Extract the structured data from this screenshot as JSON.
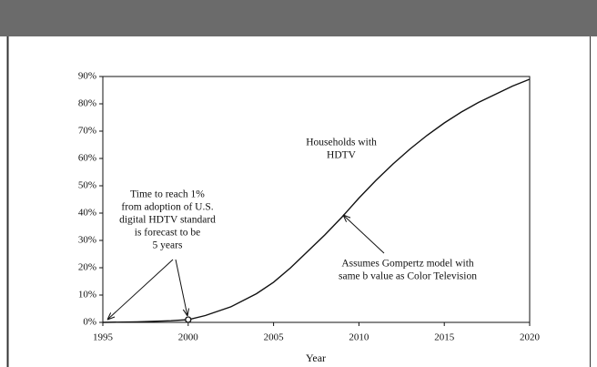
{
  "chart_data": {
    "type": "line",
    "x": [
      1995,
      1997,
      1999,
      2000,
      2001,
      2002.5,
      2004,
      2005,
      2006,
      2007,
      2008,
      2009,
      2010,
      2011,
      2012,
      2013,
      2014,
      2015,
      2016,
      2017,
      2018,
      2019,
      2020
    ],
    "series": [
      {
        "name": "Households with HDTV",
        "color": "#111111",
        "values": [
          0,
          0.2,
          0.6,
          1,
          2.5,
          5.7,
          10.5,
          14.7,
          20,
          26,
          32,
          38.5,
          45.5,
          52,
          58,
          63.5,
          68.5,
          73,
          77,
          80.5,
          83.5,
          86.5,
          89
        ]
      }
    ],
    "highlight": {
      "x": 2000,
      "value": 1
    },
    "xlim": [
      1995,
      2020
    ],
    "xticks": [
      1995,
      2000,
      2005,
      2010,
      2015,
      2020
    ],
    "ylim": [
      0,
      90
    ],
    "yticks": [
      {
        "value": 0,
        "label": "0%"
      },
      {
        "value": 10,
        "label": "10%"
      },
      {
        "value": 20,
        "label": "20%"
      },
      {
        "value": 30,
        "label": "30%"
      },
      {
        "value": 40,
        "label": "40%"
      },
      {
        "value": 50,
        "label": "50%"
      },
      {
        "value": 60,
        "label": "60%"
      },
      {
        "value": 70,
        "label": "70%"
      },
      {
        "value": 80,
        "label": "80%"
      },
      {
        "value": 90,
        "label": "90%"
      }
    ],
    "xlabel": "Year",
    "annotations": [
      {
        "lines": [
          "Households with",
          "HDTV"
        ]
      },
      {
        "lines": [
          "Time to reach 1%",
          "from adoption of U.S.",
          "digital HDTV standard",
          "is forecast to be",
          "5 years"
        ]
      },
      {
        "lines": [
          "Assumes Gompertz model with",
          "same b value as Color Television"
        ]
      }
    ]
  }
}
